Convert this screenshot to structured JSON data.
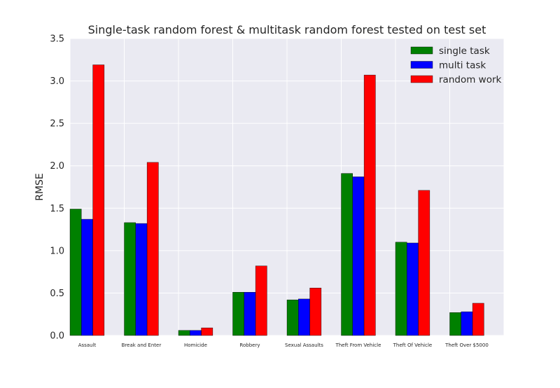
{
  "chart_data": {
    "type": "bar",
    "title": "Single-task random forest & multitask random forest tested on test set",
    "xlabel": "",
    "ylabel": "RMSE",
    "ylim": [
      0,
      3.5
    ],
    "yticks": [
      "0.0",
      "0.5",
      "1.0",
      "1.5",
      "2.0",
      "2.5",
      "3.0",
      "3.5"
    ],
    "ytick_values": [
      0,
      0.5,
      1.0,
      1.5,
      2.0,
      2.5,
      3.0,
      3.5
    ],
    "categories": [
      "Assault",
      "Break and Enter",
      "Homicide",
      "Robbery",
      "Sexual Assaults",
      "Theft From Vehicle",
      "Theft Of Vehicle",
      "Theft Over $5000"
    ],
    "series": [
      {
        "name": "single task",
        "color": "#008000",
        "values": [
          1.49,
          1.33,
          0.06,
          0.51,
          0.42,
          1.91,
          1.1,
          0.27
        ]
      },
      {
        "name": "multi task",
        "color": "#0000ff",
        "values": [
          1.37,
          1.32,
          0.06,
          0.51,
          0.43,
          1.87,
          1.09,
          0.28
        ]
      },
      {
        "name": "random work",
        "color": "#ff0000",
        "values": [
          3.19,
          2.04,
          0.09,
          0.82,
          0.56,
          3.07,
          1.71,
          0.38
        ]
      }
    ],
    "grid": true,
    "legend_position": "upper-right",
    "background_color": "#eaeaf2",
    "grid_color": "#ffffff"
  }
}
